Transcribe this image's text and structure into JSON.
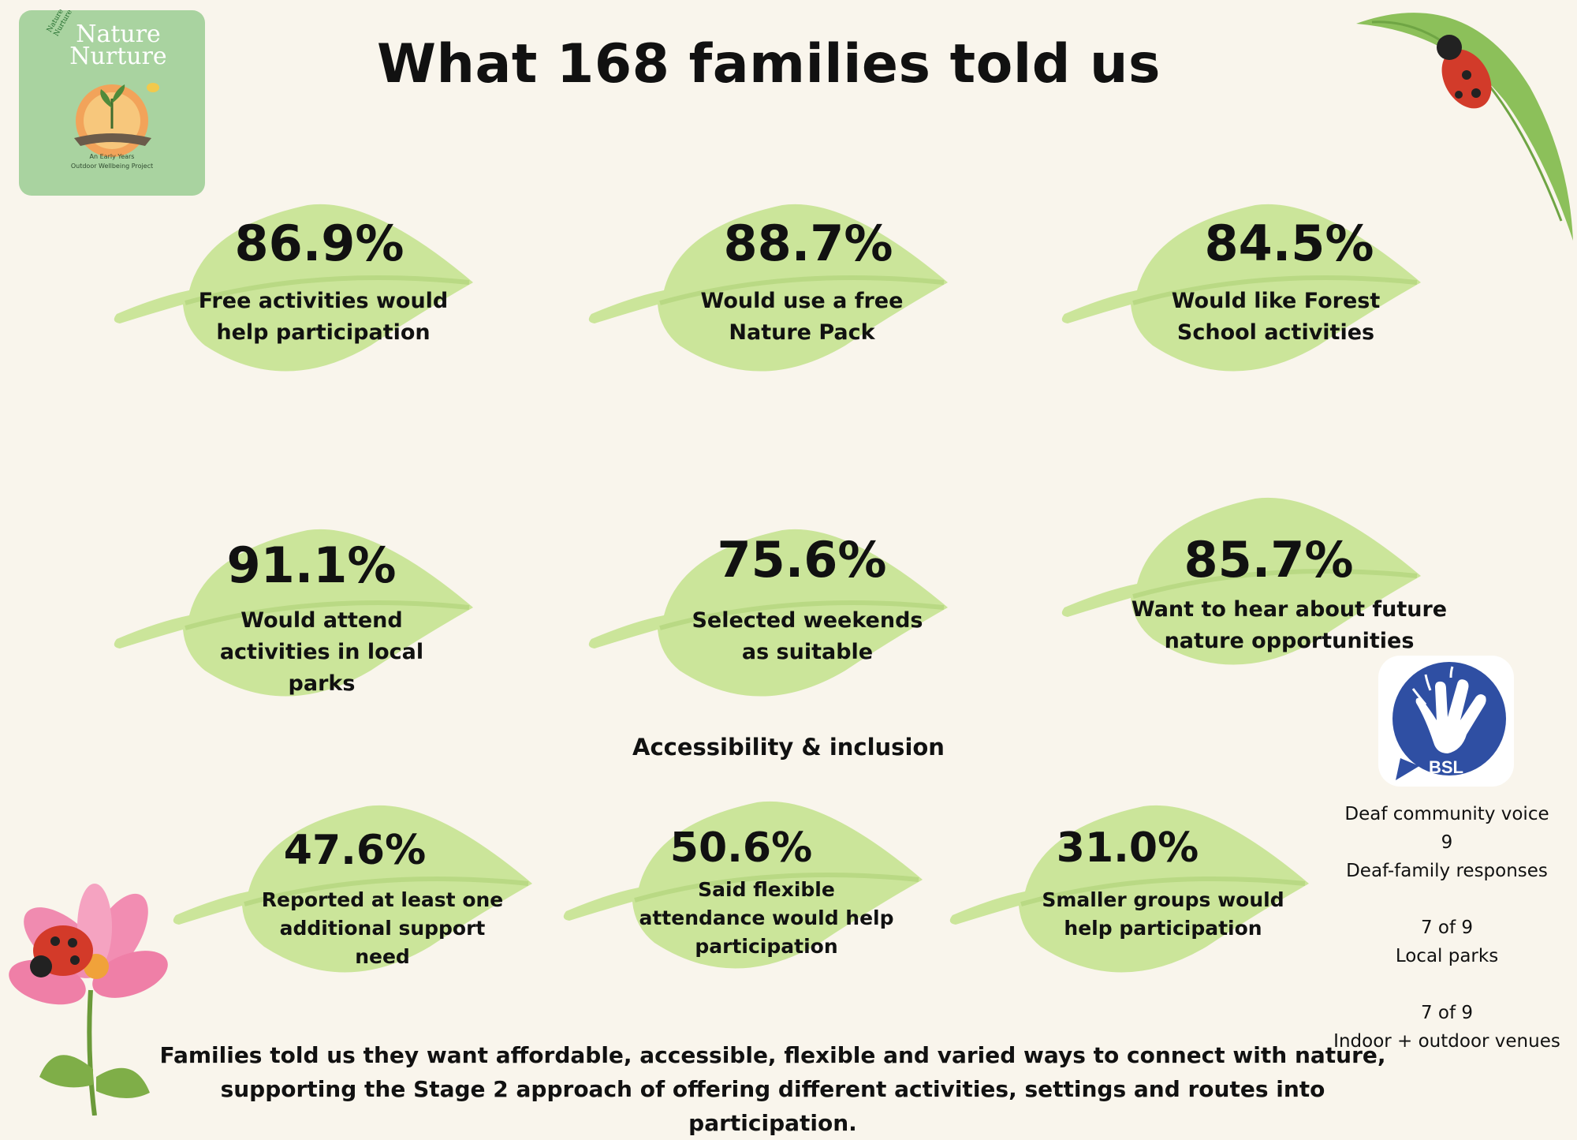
{
  "title": "What 168 families told us",
  "logo": {
    "arc_text": "Nature Nurture",
    "title_line1": "Nature",
    "title_line2": "Nurture",
    "subtitle_line1": "An Early Years",
    "subtitle_line2": "Outdoor Wellbeing Project"
  },
  "stats": [
    {
      "value": "86.9%",
      "line1": "Free activities would",
      "line2": "help participation",
      "line3": ""
    },
    {
      "value": "88.7%",
      "line1": "Would use a free",
      "line2": "Nature Pack",
      "line3": ""
    },
    {
      "value": "84.5%",
      "line1": "Would like Forest",
      "line2": "School activities",
      "line3": ""
    },
    {
      "value": "91.1%",
      "line1": "Would attend",
      "line2": "activities in local",
      "line3": "parks"
    },
    {
      "value": "75.6%",
      "line1": "Selected weekends",
      "line2": "as suitable",
      "line3": ""
    },
    {
      "value": "85.7%",
      "line1": "Want to hear about future",
      "line2": "nature opportunities",
      "line3": ""
    }
  ],
  "accessibility_heading": "Accessibility & inclusion",
  "access_stats": [
    {
      "value": "47.6%",
      "line1": "Reported at least one",
      "line2": "additional support",
      "line3": "need"
    },
    {
      "value": "50.6%",
      "line1": "Said flexible",
      "line2": "attendance would help",
      "line3": "participation"
    },
    {
      "value": "31.0%",
      "line1": "Smaller groups would",
      "line2": "help participation",
      "line3": ""
    }
  ],
  "bsl": {
    "icon_label": "BSL",
    "heading": "Deaf community voice",
    "count": "9",
    "count_label": "Deaf-family responses",
    "stat1_value": "7 of 9",
    "stat1_label": "Local parks",
    "stat2_value": "7 of 9",
    "stat2_label": "Indoor + outdoor venues"
  },
  "footer": {
    "line1": "Families told us they want affordable, accessible, flexible and varied ways to connect with nature,",
    "line2": "supporting the Stage 2 approach of offering different activities, settings and routes into participation."
  },
  "colors": {
    "background": "#f9f5ec",
    "leaf": "#cbe59a",
    "leaf_vein": "#b9d984",
    "bsl_blue": "#2f4fa3",
    "logo_bg": "#a9d3a0"
  }
}
